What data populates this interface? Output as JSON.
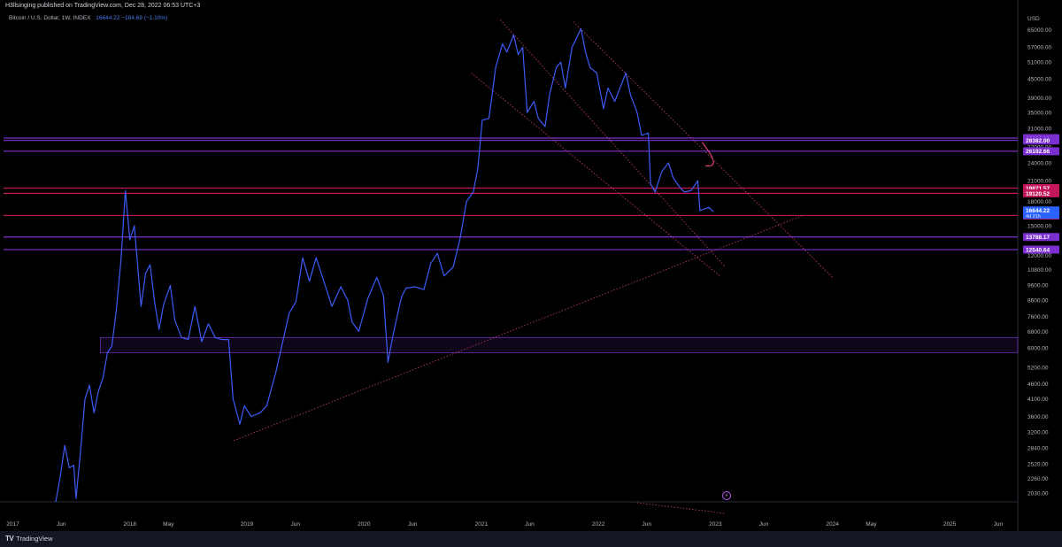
{
  "header": {
    "published_text": "H3llsinging published on TradingView.com, Dec 28, 2022 06:53 UTC+3"
  },
  "legend": {
    "symbol_text": "Bitcoin / U.S. Dollar, 1W, INDEX",
    "values_text": "16644.22  −184.69 (−1.10%)"
  },
  "footer": {
    "brand": "TradingView"
  },
  "colors": {
    "background": "#000000",
    "price_line": "#3d5bf5",
    "purple_level": "#7b2fd0",
    "magenta_level": "#c2185b",
    "trend_dotted": "#b03a6a",
    "price_badge": "#2962ff"
  },
  "chart_data": {
    "type": "line",
    "title": "Bitcoin / U.S. Dollar, 1W, INDEX",
    "currency_label": "USD",
    "log_scale": true,
    "ylim": [
      1900,
      74000
    ],
    "y_ticks": [
      65000,
      57000,
      51000,
      45000,
      39000,
      35000,
      31000,
      27000,
      24000,
      21000,
      18000,
      15000,
      12000,
      10800,
      9600,
      8600,
      7600,
      6800,
      6000,
      5200,
      4600,
      4100,
      3600,
      3200,
      2840,
      2520,
      2260,
      2030
    ],
    "x_ticks": [
      {
        "label": "2017",
        "date": "2017-01-01"
      },
      {
        "label": "Jun",
        "date": "2017-06-01"
      },
      {
        "label": "2018",
        "date": "2018-01-01"
      },
      {
        "label": "May",
        "date": "2018-05-01"
      },
      {
        "label": "2019",
        "date": "2019-01-01"
      },
      {
        "label": "Jun",
        "date": "2019-06-01"
      },
      {
        "label": "2020",
        "date": "2020-01-01"
      },
      {
        "label": "Jun",
        "date": "2020-06-01"
      },
      {
        "label": "2021",
        "date": "2021-01-01"
      },
      {
        "label": "Jun",
        "date": "2021-06-01"
      },
      {
        "label": "2022",
        "date": "2022-01-01"
      },
      {
        "label": "Jun",
        "date": "2022-06-01"
      },
      {
        "label": "2023",
        "date": "2023-01-01"
      },
      {
        "label": "Jun",
        "date": "2023-06-01"
      },
      {
        "label": "2024",
        "date": "2024-01-01"
      },
      {
        "label": "May",
        "date": "2024-05-01"
      },
      {
        "label": "2025",
        "date": "2025-01-01"
      },
      {
        "label": "Jun",
        "date": "2025-06-01"
      }
    ],
    "series": [
      {
        "name": "Bitcoin / U.S. Dollar",
        "points": [
          [
            "2017-05-15",
            1900
          ],
          [
            "2017-05-29",
            2300
          ],
          [
            "2017-06-12",
            2900
          ],
          [
            "2017-06-26",
            2450
          ],
          [
            "2017-07-10",
            2500
          ],
          [
            "2017-07-17",
            1950
          ],
          [
            "2017-07-31",
            2750
          ],
          [
            "2017-08-14",
            4100
          ],
          [
            "2017-08-28",
            4550
          ],
          [
            "2017-09-11",
            3700
          ],
          [
            "2017-09-25",
            4350
          ],
          [
            "2017-10-09",
            4800
          ],
          [
            "2017-10-23",
            5800
          ],
          [
            "2017-11-06",
            6100
          ],
          [
            "2017-11-20",
            8000
          ],
          [
            "2017-12-04",
            11500
          ],
          [
            "2017-12-18",
            19500
          ],
          [
            "2018-01-01",
            13500
          ],
          [
            "2018-01-15",
            15000
          ],
          [
            "2018-01-29",
            10000
          ],
          [
            "2018-02-05",
            8200
          ],
          [
            "2018-02-19",
            10500
          ],
          [
            "2018-03-05",
            11200
          ],
          [
            "2018-03-19",
            8500
          ],
          [
            "2018-04-02",
            6900
          ],
          [
            "2018-04-16",
            8300
          ],
          [
            "2018-05-07",
            9600
          ],
          [
            "2018-05-21",
            7400
          ],
          [
            "2018-06-11",
            6500
          ],
          [
            "2018-07-02",
            6400
          ],
          [
            "2018-07-23",
            8200
          ],
          [
            "2018-08-13",
            6300
          ],
          [
            "2018-09-03",
            7200
          ],
          [
            "2018-09-24",
            6500
          ],
          [
            "2018-10-15",
            6400
          ],
          [
            "2018-11-05",
            6400
          ],
          [
            "2018-11-19",
            4100
          ],
          [
            "2018-12-10",
            3400
          ],
          [
            "2018-12-24",
            3900
          ],
          [
            "2019-01-14",
            3600
          ],
          [
            "2019-02-11",
            3700
          ],
          [
            "2019-03-04",
            3900
          ],
          [
            "2019-04-01",
            5000
          ],
          [
            "2019-05-13",
            7800
          ],
          [
            "2019-06-03",
            8500
          ],
          [
            "2019-06-24",
            11800
          ],
          [
            "2019-07-15",
            9900
          ],
          [
            "2019-08-05",
            11800
          ],
          [
            "2019-08-26",
            10100
          ],
          [
            "2019-09-23",
            8200
          ],
          [
            "2019-10-21",
            9500
          ],
          [
            "2019-11-11",
            8600
          ],
          [
            "2019-11-25",
            7300
          ],
          [
            "2019-12-16",
            6800
          ],
          [
            "2020-01-13",
            8700
          ],
          [
            "2020-02-10",
            10200
          ],
          [
            "2020-03-02",
            8900
          ],
          [
            "2020-03-16",
            5400
          ],
          [
            "2020-03-30",
            6500
          ],
          [
            "2020-04-27",
            8800
          ],
          [
            "2020-05-11",
            9400
          ],
          [
            "2020-06-08",
            9500
          ],
          [
            "2020-07-06",
            9300
          ],
          [
            "2020-07-27",
            11300
          ],
          [
            "2020-08-17",
            12200
          ],
          [
            "2020-09-07",
            10300
          ],
          [
            "2020-10-05",
            11000
          ],
          [
            "2020-10-26",
            13500
          ],
          [
            "2020-11-16",
            18000
          ],
          [
            "2020-12-07",
            19300
          ],
          [
            "2020-12-21",
            23000
          ],
          [
            "2021-01-04",
            33000
          ],
          [
            "2021-01-25",
            33500
          ],
          [
            "2021-02-15",
            49000
          ],
          [
            "2021-03-08",
            58500
          ],
          [
            "2021-03-22",
            55000
          ],
          [
            "2021-04-12",
            62500
          ],
          [
            "2021-04-26",
            54000
          ],
          [
            "2021-05-10",
            57000
          ],
          [
            "2021-05-24",
            35000
          ],
          [
            "2021-06-14",
            38000
          ],
          [
            "2021-06-28",
            33500
          ],
          [
            "2021-07-19",
            31500
          ],
          [
            "2021-08-02",
            40000
          ],
          [
            "2021-08-23",
            49000
          ],
          [
            "2021-09-06",
            51000
          ],
          [
            "2021-09-20",
            42000
          ],
          [
            "2021-10-11",
            57000
          ],
          [
            "2021-10-25",
            61000
          ],
          [
            "2021-11-08",
            65500
          ],
          [
            "2021-11-22",
            55000
          ],
          [
            "2021-12-06",
            49000
          ],
          [
            "2021-12-27",
            47000
          ],
          [
            "2022-01-17",
            36000
          ],
          [
            "2022-01-31",
            42000
          ],
          [
            "2022-02-21",
            38000
          ],
          [
            "2022-03-28",
            47000
          ],
          [
            "2022-04-11",
            40000
          ],
          [
            "2022-05-02",
            35000
          ],
          [
            "2022-05-16",
            29500
          ],
          [
            "2022-06-06",
            30000
          ],
          [
            "2022-06-13",
            20500
          ],
          [
            "2022-06-27",
            19300
          ],
          [
            "2022-07-18",
            22500
          ],
          [
            "2022-08-08",
            24000
          ],
          [
            "2022-08-22",
            21500
          ],
          [
            "2022-09-12",
            20000
          ],
          [
            "2022-09-26",
            19300
          ],
          [
            "2022-10-17",
            19500
          ],
          [
            "2022-11-07",
            21000
          ],
          [
            "2022-11-14",
            16800
          ],
          [
            "2022-11-28",
            17000
          ],
          [
            "2022-12-12",
            17200
          ],
          [
            "2022-12-26",
            16644
          ]
        ]
      }
    ],
    "horizontal_levels": [
      {
        "label": "28891.10",
        "value": 28891.1,
        "color": "#7b2fd0"
      },
      {
        "label": "28382.00",
        "value": 28382.0,
        "color": "#7b2fd0"
      },
      {
        "label": "26192.66",
        "value": 26192.66,
        "color": "#7b2fd0"
      },
      {
        "label": "19871.57",
        "value": 19871.57,
        "color": "#c2185b"
      },
      {
        "label": "19120.52",
        "value": 19120.52,
        "color": "#c2185b"
      },
      {
        "label": "16192.80",
        "value": 16192.8,
        "color": "#c2185b"
      },
      {
        "label": "13788.17",
        "value": 13788.17,
        "color": "#7b2fd0"
      },
      {
        "label": "12540.64",
        "value": 12540.64,
        "color": "#7b2fd0"
      }
    ],
    "current_price": {
      "label": "16644.22",
      "sublabel": "4d 21h",
      "value": 16644.22
    },
    "zone": {
      "from_date": "2017-10-01",
      "to_date": "2025-08-01",
      "low": 5800,
      "high": 6500
    },
    "trendlines": [
      {
        "style": "dotted",
        "p1": [
          "2018-11-20",
          3000
        ],
        "p2": [
          "2023-10-01",
          16200
        ]
      },
      {
        "style": "dotted",
        "p1": [
          "2021-03-01",
          70000
        ],
        "p2": [
          "2023-02-01",
          11000
        ]
      },
      {
        "style": "dotted",
        "p1": [
          "2021-10-15",
          69000
        ],
        "p2": [
          "2024-01-01",
          10200
        ]
      },
      {
        "style": "dotted",
        "p1": [
          "2020-12-01",
          47000
        ],
        "p2": [
          "2023-01-15",
          10300
        ]
      }
    ]
  }
}
